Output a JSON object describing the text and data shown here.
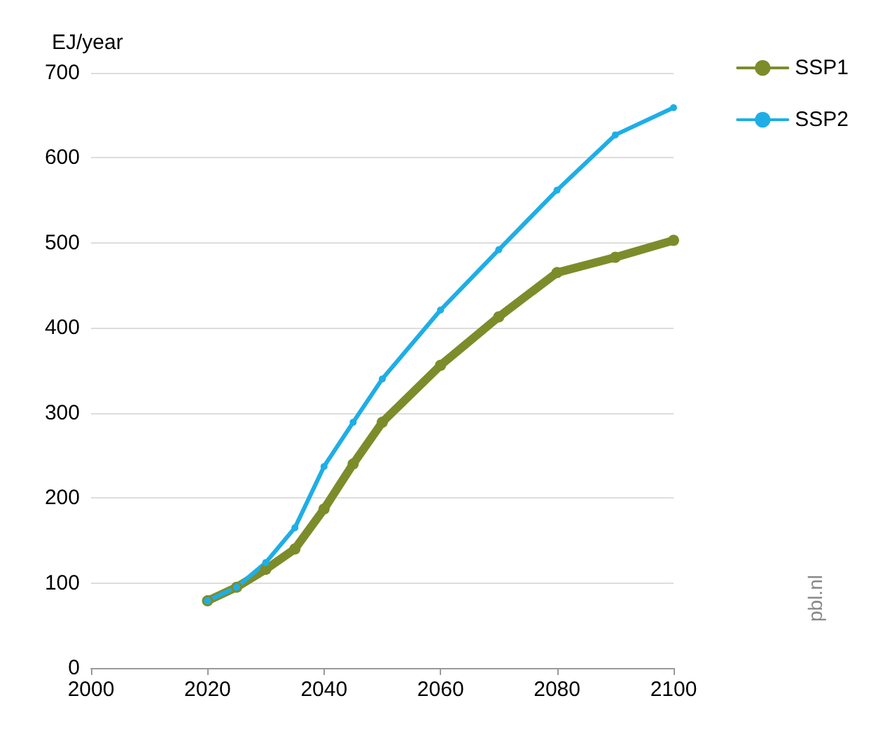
{
  "chart_data": {
    "type": "line",
    "ylabel": "EJ/year",
    "x": [
      2020,
      2025,
      2030,
      2035,
      2040,
      2045,
      2050,
      2060,
      2070,
      2080,
      2090,
      2100
    ],
    "series": [
      {
        "name": "SSP1",
        "color": "#7d8c2a",
        "values": [
          79,
          95,
          116,
          140,
          187,
          240,
          289,
          356,
          413,
          465,
          483,
          503
        ]
      },
      {
        "name": "SSP2",
        "color": "#1eaee6",
        "values": [
          79,
          95,
          124,
          165,
          237,
          289,
          340,
          421,
          492,
          562,
          627,
          659
        ]
      }
    ],
    "xlim": [
      2000,
      2100
    ],
    "xticks": [
      2000,
      2020,
      2040,
      2060,
      2080,
      2100
    ],
    "ylim": [
      0,
      700
    ],
    "yticks": [
      0,
      100,
      200,
      300,
      400,
      500,
      600,
      700
    ],
    "grid": "y",
    "legend": "top right",
    "marker": "circle",
    "line_style": "solid",
    "annotations": [
      "pbl.nl"
    ]
  }
}
